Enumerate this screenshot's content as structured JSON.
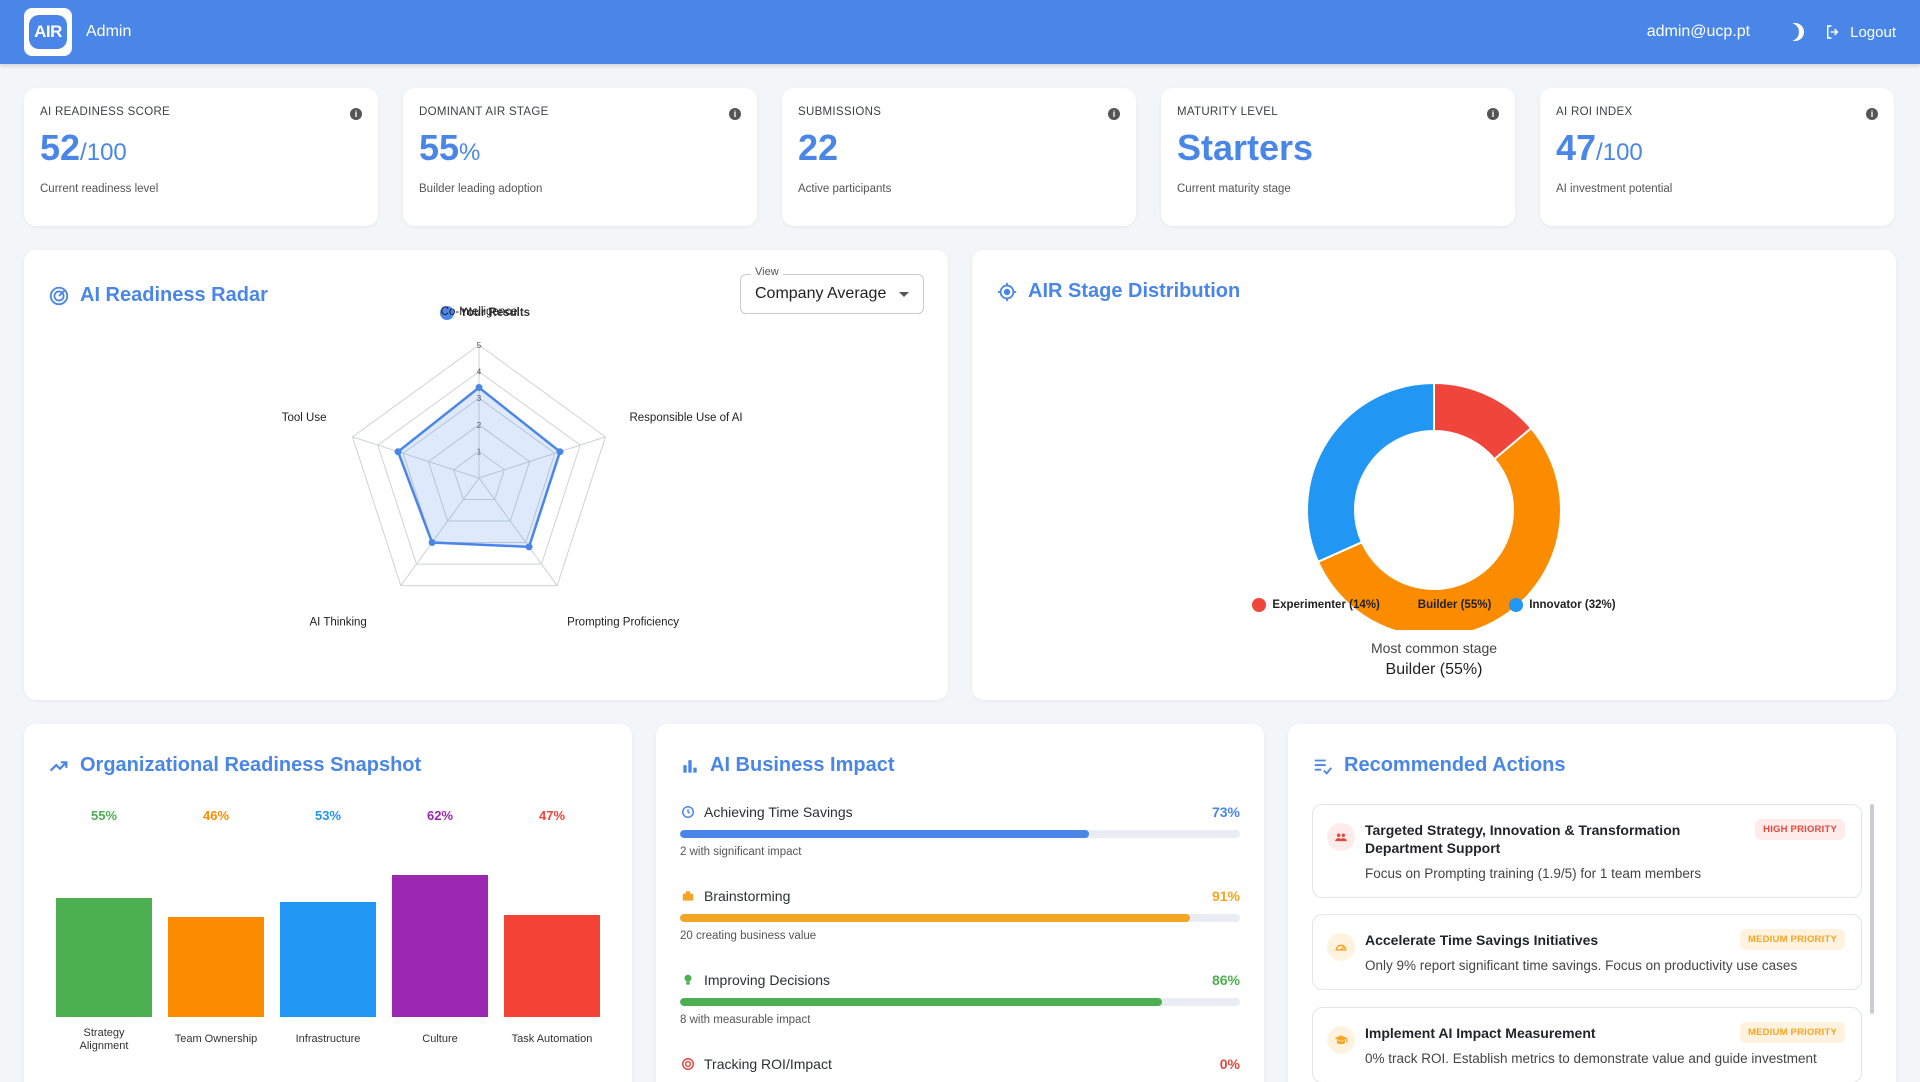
{
  "header": {
    "logo_text": "AIR",
    "app_name": "Admin",
    "email": "admin@ucp.pt",
    "logout_label": "Logout"
  },
  "kpis": [
    {
      "label": "AI READINESS SCORE",
      "value": "52",
      "unit": "/100",
      "sub": "Current readiness level"
    },
    {
      "label": "DOMINANT AIR STAGE",
      "value": "55",
      "unit": "%",
      "sub": "Builder leading adoption"
    },
    {
      "label": "SUBMISSIONS",
      "value": "22",
      "unit": "",
      "sub": "Active participants"
    },
    {
      "label": "MATURITY LEVEL",
      "value": "Starters",
      "unit": "",
      "sub": "Current maturity stage"
    },
    {
      "label": "AI ROI INDEX",
      "value": "47",
      "unit": "/100",
      "sub": "AI investment potential"
    }
  ],
  "radar": {
    "title": "AI Readiness Radar",
    "view_label": "View",
    "view_value": "Company Average",
    "legend": "Your Results",
    "axes": [
      "Co-Intelligence",
      "Responsible Use of AI",
      "Prompting Proficiency",
      "AI Thinking",
      "Tool Use"
    ],
    "ticks": [
      "1",
      "2",
      "3",
      "4",
      "5"
    ],
    "values": [
      3.4,
      3.2,
      3.2,
      3.0,
      3.2
    ],
    "max": 5,
    "color": "#4a86e8"
  },
  "distribution": {
    "title": "AIR Stage Distribution",
    "slices": [
      {
        "label": "Experimenter (14%)",
        "value": 14,
        "color": "#f0453a"
      },
      {
        "label": "Builder (55%)",
        "value": 55,
        "color": "#fb8c00"
      },
      {
        "label": "Innovator (32%)",
        "value": 32,
        "color": "#2196f3"
      }
    ],
    "caption": "Most common stage",
    "caption_value": "Builder (55%)"
  },
  "snapshot": {
    "title": "Organizational Readiness Snapshot",
    "bars": [
      {
        "label": "Strategy Alignment",
        "pct": "55%",
        "value": 55,
        "color": "#4caf50"
      },
      {
        "label": "Team Ownership",
        "pct": "46%",
        "value": 46,
        "color": "#fb8c00"
      },
      {
        "label": "Infrastructure",
        "pct": "53%",
        "value": 53,
        "color": "#2196f3"
      },
      {
        "label": "Culture",
        "pct": "62%",
        "value": 62,
        "color": "#9c27b0"
      },
      {
        "label": "Task Automation",
        "pct": "47%",
        "value": 47,
        "color": "#f44336"
      }
    ]
  },
  "impact": {
    "title": "AI Business Impact",
    "rows": [
      {
        "label": "Achieving Time Savings",
        "pct": "73%",
        "value": 73,
        "sub": "2 with significant impact",
        "color": "#4a86e8",
        "icon": "clock-icon"
      },
      {
        "label": "Brainstorming",
        "pct": "91%",
        "value": 91,
        "sub": "20 creating business value",
        "color": "#f5a524",
        "icon": "lightbulb-box-icon"
      },
      {
        "label": "Improving Decisions",
        "pct": "86%",
        "value": 86,
        "sub": "8 with measurable impact",
        "color": "#4caf50",
        "icon": "bulb-icon"
      },
      {
        "label": "Tracking ROI/Impact",
        "pct": "0%",
        "value": 0,
        "sub": "",
        "color": "#e5483d",
        "icon": "target-icon"
      }
    ]
  },
  "actions": {
    "title": "Recommended Actions",
    "items": [
      {
        "title": "Targeted Strategy, Innovation & Transformation Department Support",
        "priority": "HIGH PRIORITY",
        "level": "high",
        "desc": "Focus on Prompting training (1.9/5) for 1 team members",
        "icon": "people-icon"
      },
      {
        "title": "Accelerate Time Savings Initiatives",
        "priority": "MEDIUM PRIORITY",
        "level": "med",
        "desc": "Only 9% report significant time savings. Focus on productivity use cases",
        "icon": "speedometer-icon"
      },
      {
        "title": "Implement AI Impact Measurement",
        "priority": "MEDIUM PRIORITY",
        "level": "med",
        "desc": "0% track ROI. Establish metrics to demonstrate value and guide investment",
        "icon": "graduation-cap-icon"
      }
    ]
  }
}
